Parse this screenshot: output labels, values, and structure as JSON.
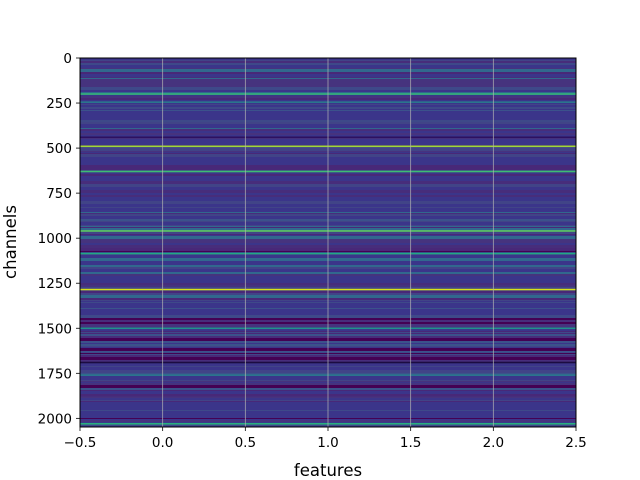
{
  "chart_data": {
    "type": "heatmap",
    "title": "",
    "xlabel": "features",
    "ylabel": "channels",
    "xlim": [
      -0.5,
      2.5
    ],
    "ylim": [
      2048,
      0
    ],
    "y_inverted": true,
    "x_ticks": [
      -0.5,
      0.0,
      0.5,
      1.0,
      1.5,
      2.0,
      2.5
    ],
    "x_tick_labels": [
      "−0.5",
      "0.0",
      "0.5",
      "1.0",
      "1.5",
      "2.0",
      "2.5"
    ],
    "y_ticks": [
      0,
      250,
      500,
      750,
      1000,
      1250,
      1500,
      1750,
      2000
    ],
    "y_tick_labels": [
      "0",
      "250",
      "500",
      "750",
      "1000",
      "1250",
      "1500",
      "1750",
      "2000"
    ],
    "grid": true,
    "grid_color": "#b0b0b0",
    "colormap": "viridis",
    "base_color": "#3b358a",
    "n_rows": 2048,
    "n_cols": 3,
    "highlight_rows": [
      {
        "row": 200,
        "color": "#35b779"
      },
      {
        "row": 245,
        "color": "#2a788e"
      },
      {
        "row": 440,
        "color": "#2d1160"
      },
      {
        "row": 490,
        "color": "#9fd938"
      },
      {
        "row": 630,
        "color": "#3fbc73"
      },
      {
        "row": 960,
        "color": "#5ec962"
      },
      {
        "row": 1085,
        "color": "#22a884"
      },
      {
        "row": 1285,
        "color": "#d8e219"
      },
      {
        "row": 1500,
        "color": "#21918c"
      },
      {
        "row": 1690,
        "color": "#1b0c41"
      },
      {
        "row": 1760,
        "color": "#2a788e"
      },
      {
        "row": 2030,
        "color": "#29af7f"
      }
    ]
  }
}
